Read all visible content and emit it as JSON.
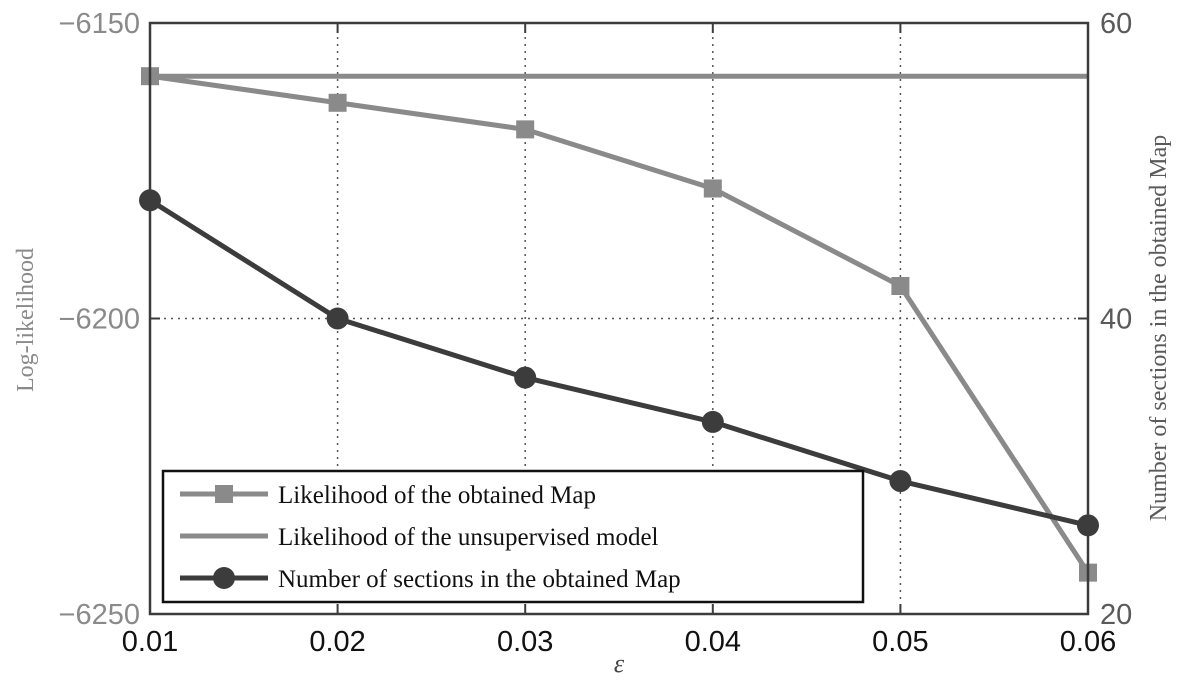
{
  "chart_data": {
    "type": "line",
    "x": [
      0.01,
      0.02,
      0.03,
      0.04,
      0.05,
      0.06
    ],
    "xlabel": "ε",
    "ylabel_left": "Log-likelihood",
    "ylabel_right": "Number of sections in the obtained Map",
    "xlim": [
      0.01,
      0.06
    ],
    "ylim_left": [
      -6250,
      -6150
    ],
    "ylim_right": [
      20,
      60
    ],
    "x_ticks": [
      "0.01",
      "0.02",
      "0.03",
      "0.04",
      "0.05",
      "0.06"
    ],
    "y_ticks_left": [
      "−6150",
      "−6200",
      "−6250"
    ],
    "y_ticks_left_values": [
      -6150,
      -6200,
      -6250
    ],
    "y_ticks_right": [
      "60",
      "40",
      "20"
    ],
    "y_ticks_right_values": [
      60,
      40,
      20
    ],
    "grid": true,
    "legend_position": "bottom-left",
    "series": [
      {
        "name": "Likelihood of the obtained Map",
        "axis": "left",
        "marker": "square",
        "color": "#8a8a8a",
        "values": [
          -6159,
          -6163.5,
          -6168,
          -6178,
          -6194.5,
          -6243
        ]
      },
      {
        "name": "Likelihood of the unsupervised model",
        "axis": "left",
        "marker": "none",
        "color": "#8a8a8a",
        "values": [
          -6159,
          -6159,
          -6159,
          -6159,
          -6159,
          -6159
        ]
      },
      {
        "name": "Number of sections in the obtained Map",
        "axis": "right",
        "marker": "circle",
        "color": "#3c3c3c",
        "values": [
          48,
          40,
          36,
          33,
          29,
          26
        ]
      }
    ]
  }
}
